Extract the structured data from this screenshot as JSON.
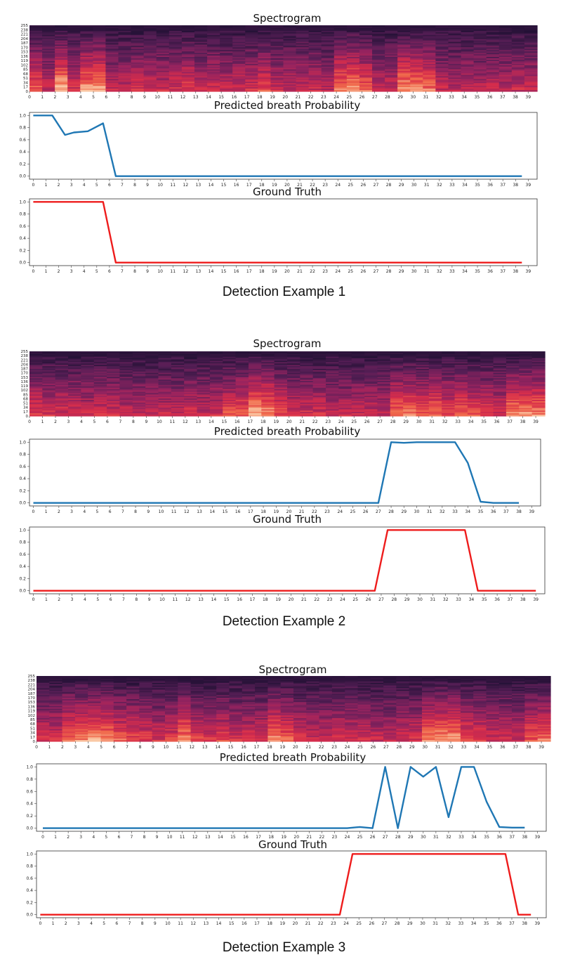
{
  "figure": {
    "tick_labels_x": [
      "0",
      "1",
      "2",
      "3",
      "4",
      "5",
      "6",
      "7",
      "8",
      "9",
      "10",
      "11",
      "12",
      "13",
      "14",
      "15",
      "16",
      "17",
      "18",
      "19",
      "20",
      "21",
      "22",
      "23",
      "24",
      "25",
      "26",
      "27",
      "28",
      "29",
      "30",
      "31",
      "32",
      "33",
      "34",
      "35",
      "36",
      "37",
      "38",
      "39"
    ],
    "spectrogram_y_ticks": [
      "255",
      "238",
      "221",
      "204",
      "187",
      "170",
      "153",
      "136",
      "119",
      "102",
      "85",
      "68",
      "51",
      "34",
      "17",
      "0"
    ],
    "prob_y_ticks": [
      "0.0",
      "0.2",
      "0.4",
      "0.6",
      "0.8",
      "1.0"
    ],
    "colors": {
      "predicted": "#1f77b4",
      "ground_truth": "#ee1c1c"
    }
  },
  "examples": [
    {
      "label": "Detection Example 1",
      "spectrogram_title": "Spectrogram",
      "pred_title": "Predicted breath Probability",
      "gt_title": "Ground Truth"
    },
    {
      "label": "Detection Example 2",
      "spectrogram_title": "Spectrogram",
      "pred_title": "Predicted breath Probability",
      "gt_title": "Ground Truth"
    },
    {
      "label": "Detection Example 3",
      "spectrogram_title": "Spectrogram",
      "pred_title": "Predicted breath Probability",
      "gt_title": "Ground Truth"
    }
  ],
  "chart_data": [
    {
      "type": "heatmap",
      "title": "Spectrogram",
      "x_ticks": [
        0,
        1,
        2,
        3,
        4,
        5,
        6,
        7,
        8,
        9,
        10,
        11,
        12,
        13,
        14,
        15,
        16,
        17,
        18,
        19,
        20,
        21,
        22,
        23,
        24,
        25,
        26,
        27,
        28,
        29,
        30,
        31,
        32,
        33,
        34,
        35,
        36,
        37,
        38,
        39
      ],
      "y_ticks": [
        0,
        17,
        34,
        51,
        68,
        85,
        102,
        119,
        136,
        153,
        170,
        187,
        204,
        221,
        238,
        255
      ],
      "xlim": [
        0,
        39.7
      ],
      "ylim": [
        0,
        255
      ],
      "column_intensity": [
        0.75,
        0.55,
        0.95,
        0.6,
        0.9,
        0.9,
        0.55,
        0.55,
        0.6,
        0.6,
        0.55,
        0.6,
        0.65,
        0.55,
        0.6,
        0.55,
        0.6,
        0.6,
        0.7,
        0.55,
        0.55,
        0.55,
        0.55,
        0.5,
        0.85,
        0.9,
        0.75,
        0.55,
        0.55,
        0.9,
        0.85,
        0.8,
        0.55,
        0.5,
        0.55,
        0.5,
        0.55,
        0.5,
        0.55,
        0.55
      ]
    },
    {
      "type": "line",
      "title": "Predicted breath Probability",
      "x": [
        0,
        1,
        1.5,
        2.5,
        3.2,
        4.3,
        5.5,
        6.5,
        7.5,
        8.5,
        9.5,
        10.5,
        11.5,
        12.5,
        13.5,
        14.5,
        15.5,
        16.5,
        17.5,
        18.5,
        19.5,
        20.5,
        21.5,
        22.5,
        23.5,
        24.5,
        25.5,
        26.5,
        27.5,
        28.5,
        29.5,
        30.5,
        31.5,
        32.5,
        33.5,
        34.5,
        35.5,
        36.5,
        37.5,
        38.5
      ],
      "y": [
        1.0,
        1.0,
        1.0,
        0.68,
        0.72,
        0.74,
        0.87,
        0.0,
        0.0,
        0.0,
        0.0,
        0.0,
        0.0,
        0.0,
        0.0,
        0.0,
        0.0,
        0.0,
        0.0,
        0.0,
        0.0,
        0.0,
        0.0,
        0.0,
        0.0,
        0.0,
        0.0,
        0.0,
        0.0,
        0.0,
        0.0,
        0.0,
        0.0,
        0.0,
        0.0,
        0.0,
        0.0,
        0.0,
        0.0,
        0.0
      ],
      "xlim": [
        -0.3,
        39.7
      ],
      "ylim": [
        -0.05,
        1.05
      ],
      "y_ticks": [
        0.0,
        0.2,
        0.4,
        0.6,
        0.8,
        1.0
      ]
    },
    {
      "type": "line",
      "title": "Ground Truth",
      "x": [
        0,
        5.5,
        6.5,
        38.5
      ],
      "y": [
        1.0,
        1.0,
        0.0,
        0.0
      ],
      "xlim": [
        -0.3,
        39.7
      ],
      "ylim": [
        -0.05,
        1.05
      ],
      "y_ticks": [
        0.0,
        0.2,
        0.4,
        0.6,
        0.8,
        1.0
      ]
    },
    {
      "type": "heatmap",
      "title": "Spectrogram",
      "x_ticks": [
        0,
        1,
        2,
        3,
        4,
        5,
        6,
        7,
        8,
        9,
        10,
        11,
        12,
        13,
        14,
        15,
        16,
        17,
        18,
        19,
        20,
        21,
        22,
        23,
        24,
        25,
        26,
        27,
        28,
        29,
        30,
        31,
        32,
        33,
        34,
        35,
        36,
        37,
        38,
        39
      ],
      "y_ticks": [
        0,
        17,
        34,
        51,
        68,
        85,
        102,
        119,
        136,
        153,
        170,
        187,
        204,
        221,
        238,
        255
      ],
      "xlim": [
        0,
        39.7
      ],
      "ylim": [
        0,
        255
      ],
      "column_intensity": [
        0.65,
        0.6,
        0.6,
        0.6,
        0.55,
        0.6,
        0.6,
        0.55,
        0.55,
        0.55,
        0.55,
        0.55,
        0.6,
        0.55,
        0.6,
        0.7,
        0.75,
        0.95,
        0.9,
        0.7,
        0.6,
        0.6,
        0.6,
        0.55,
        0.55,
        0.55,
        0.55,
        0.55,
        0.8,
        0.8,
        0.75,
        0.8,
        0.7,
        0.75,
        0.7,
        0.65,
        0.6,
        0.85,
        0.9,
        0.85
      ]
    },
    {
      "type": "line",
      "title": "Predicted breath Probability",
      "x": [
        0,
        1,
        2,
        3,
        4,
        5,
        6,
        7,
        8,
        9,
        10,
        11,
        12,
        13,
        14,
        15,
        16,
        17,
        18,
        19,
        20,
        21,
        22,
        23,
        24,
        25,
        26,
        27,
        28,
        29,
        30,
        31,
        32,
        33,
        34,
        35,
        36,
        37,
        38
      ],
      "y": [
        0,
        0,
        0,
        0,
        0,
        0,
        0,
        0,
        0,
        0,
        0,
        0,
        0,
        0,
        0,
        0,
        0,
        0,
        0,
        0,
        0,
        0,
        0,
        0,
        0,
        0,
        0,
        0,
        1.0,
        0.99,
        1.0,
        1.0,
        1.0,
        1.0,
        0.66,
        0.02,
        0.0,
        0.0,
        0.0
      ],
      "xlim": [
        -0.3,
        39.7
      ],
      "ylim": [
        -0.05,
        1.05
      ],
      "y_ticks": [
        0.0,
        0.2,
        0.4,
        0.6,
        0.8,
        1.0
      ]
    },
    {
      "type": "line",
      "title": "Ground Truth",
      "x": [
        0,
        26.5,
        27.5,
        33.5,
        34.5,
        39
      ],
      "y": [
        0,
        0,
        1.0,
        1.0,
        0,
        0
      ],
      "xlim": [
        -0.3,
        39.7
      ],
      "ylim": [
        -0.05,
        1.05
      ],
      "y_ticks": [
        0.0,
        0.2,
        0.4,
        0.6,
        0.8,
        1.0
      ]
    },
    {
      "type": "heatmap",
      "title": "Spectrogram",
      "x_ticks": [
        0,
        1,
        2,
        3,
        4,
        5,
        6,
        7,
        8,
        9,
        10,
        11,
        12,
        13,
        14,
        15,
        16,
        17,
        18,
        19,
        20,
        21,
        22,
        23,
        24,
        25,
        26,
        27,
        28,
        29,
        30,
        31,
        32,
        33,
        34,
        35,
        36,
        37,
        38,
        39
      ],
      "y_ticks": [
        0,
        17,
        34,
        51,
        68,
        85,
        102,
        119,
        136,
        153,
        170,
        187,
        204,
        221,
        238,
        255
      ],
      "xlim": [
        0,
        39.7
      ],
      "ylim": [
        0,
        255
      ],
      "column_intensity": [
        0.6,
        0.6,
        0.8,
        0.85,
        0.9,
        0.85,
        0.75,
        0.7,
        0.65,
        0.6,
        0.65,
        0.85,
        0.65,
        0.6,
        0.65,
        0.6,
        0.6,
        0.6,
        0.85,
        0.75,
        0.6,
        0.55,
        0.55,
        0.6,
        0.6,
        0.6,
        0.55,
        0.55,
        0.6,
        0.6,
        0.85,
        0.9,
        0.9,
        0.7,
        0.65,
        0.6,
        0.6,
        0.55,
        0.75,
        0.8
      ]
    },
    {
      "type": "line",
      "title": "Predicted breath Probability",
      "x": [
        0,
        1,
        2,
        3,
        4,
        5,
        6,
        7,
        8,
        9,
        10,
        11,
        12,
        13,
        14,
        15,
        16,
        17,
        18,
        19,
        20,
        21,
        22,
        23,
        24,
        25,
        26,
        27,
        28,
        29,
        30,
        31,
        32,
        33,
        34,
        35,
        36,
        37,
        38
      ],
      "y": [
        0,
        0,
        0,
        0,
        0,
        0,
        0,
        0,
        0,
        0,
        0,
        0,
        0,
        0,
        0,
        0,
        0,
        0,
        0,
        0,
        0,
        0,
        0,
        0,
        0,
        0.02,
        0,
        1.0,
        0,
        1.0,
        0.84,
        1.0,
        0.18,
        1.0,
        1.0,
        0.43,
        0.02,
        0.01,
        0.01
      ],
      "xlim": [
        -0.5,
        39.7
      ],
      "ylim": [
        -0.05,
        1.05
      ],
      "y_ticks": [
        0.0,
        0.2,
        0.4,
        0.6,
        0.8,
        1.0
      ]
    },
    {
      "type": "line",
      "title": "Ground Truth",
      "x": [
        0,
        23.5,
        24.5,
        36.5,
        37.5,
        38.5
      ],
      "y": [
        0,
        0,
        1.0,
        1.0,
        0,
        0
      ],
      "xlim": [
        -0.3,
        39.7
      ],
      "ylim": [
        -0.05,
        1.05
      ],
      "y_ticks": [
        0.0,
        0.2,
        0.4,
        0.6,
        0.8,
        1.0
      ]
    }
  ]
}
